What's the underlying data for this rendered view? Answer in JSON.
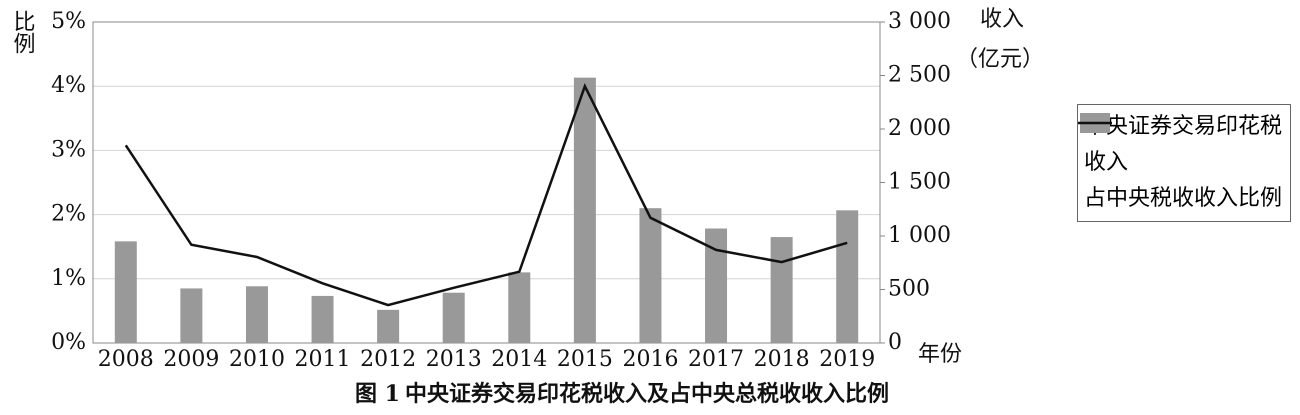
{
  "chart_data": {
    "type": "combo",
    "title_number": "图 1",
    "title": "中央证券交易印花税收入及占中央总税收收入比例",
    "x_label": "年份",
    "y_label": "比例",
    "y2_label": [
      "收入",
      "（亿元）"
    ],
    "categories": [
      "2008",
      "2009",
      "2010",
      "2011",
      "2012",
      "2013",
      "2014",
      "2015",
      "2016",
      "2017",
      "2018",
      "2019"
    ],
    "series": [
      {
        "name": "中央证券交易印花税收入",
        "type": "bar",
        "axis": "y2",
        "color": "#999999",
        "values": [
          950,
          510,
          530,
          440,
          310,
          470,
          660,
          2480,
          1260,
          1070,
          990,
          1240
        ]
      },
      {
        "name": "占中央税收收入比例",
        "type": "line",
        "color": "#111111",
        "values": [
          3.08,
          1.53,
          1.34,
          0.93,
          0.59,
          0.86,
          1.11,
          4.0,
          1.95,
          1.45,
          1.26,
          1.56
        ]
      }
    ],
    "ylim": [
      0,
      5
    ],
    "yticks": [
      {
        "value": 0,
        "label": "0%"
      },
      {
        "value": 1,
        "label": "1%"
      },
      {
        "value": 2,
        "label": "2%"
      },
      {
        "value": 3,
        "label": "3%"
      },
      {
        "value": 4,
        "label": "4%"
      },
      {
        "value": 5,
        "label": "5%"
      }
    ],
    "y2lim": [
      0,
      3000
    ],
    "y2ticks": [
      0,
      500,
      {
        "value": 1000,
        "label": "1 000"
      },
      {
        "value": 1500,
        "label": "1 500"
      },
      {
        "value": 2000,
        "label": "2 000"
      },
      {
        "value": 2500,
        "label": "2 500"
      },
      {
        "value": 3000,
        "label": "3 000"
      }
    ],
    "grid": true,
    "legend": "right"
  }
}
